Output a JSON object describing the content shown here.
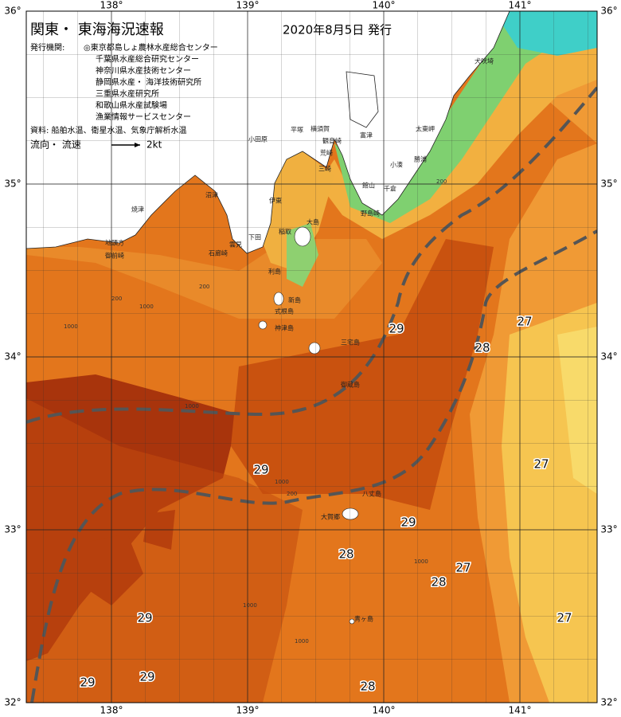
{
  "header": {
    "title": "関東・ 東海海況速報",
    "date": "2020年8月5日 発行"
  },
  "issuers": {
    "label": "発行機関:",
    "list": [
      "◎東京都島しょ農林水産総合センター",
      "千葉県水産総合研究センター",
      "神奈川県水産技術センター",
      "静岡県水産・ 海洋技術研究所",
      "三重県水産研究所",
      "和歌山県水産試験場",
      "漁業情報サービスセンター"
    ]
  },
  "source": "資料: 船舶水温、衛星水温、気象庁解析水温",
  "legend": {
    "label": "流向・ 流速",
    "speed": "2kt"
  },
  "axes": {
    "lon_ticks": [
      {
        "value": 138,
        "label": "138°"
      },
      {
        "value": 139,
        "label": "139°"
      },
      {
        "value": 140,
        "label": "140°"
      },
      {
        "value": 141,
        "label": "141°"
      }
    ],
    "lat_ticks": [
      {
        "value": 36,
        "label": "36°"
      },
      {
        "value": 35,
        "label": "35°"
      },
      {
        "value": 34,
        "label": "34°"
      },
      {
        "value": 33,
        "label": "33°"
      },
      {
        "value": 32,
        "label": "32°"
      }
    ]
  },
  "temperature_labels": [
    29,
    28,
    27,
    29,
    27,
    29,
    28,
    27,
    28,
    29,
    27,
    29,
    29,
    28
  ],
  "contour_labels": [
    "1000",
    "200",
    "1000",
    "200",
    "1000",
    "1000",
    "200",
    "1000",
    "1000",
    "1000",
    "200"
  ],
  "place_names": [
    "犬吠埼",
    "太東岬",
    "勝浦",
    "小湊",
    "千倉",
    "館山",
    "野島崎",
    "平塚",
    "横須賀",
    "観音崎",
    "荒崎",
    "富津",
    "三崎",
    "小田原",
    "伊東",
    "稲取",
    "大島",
    "下田",
    "雲見",
    "石廊崎",
    "沼津",
    "焼津",
    "地頭方",
    "御前崎",
    "利島",
    "新島",
    "式根島",
    "神津島",
    "三宅島",
    "御蔵島",
    "八丈島",
    "大賀郷",
    "青ヶ島"
  ]
}
